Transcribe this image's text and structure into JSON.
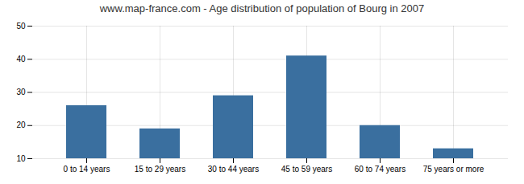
{
  "chart_data": {
    "type": "bar",
    "title": "www.map-france.com - Age distribution of population of Bourg in 2007",
    "categories": [
      "0 to 14 years",
      "15 to 29 years",
      "30 to 44 years",
      "45 to 59 years",
      "60 to 74 years",
      "75 years or more"
    ],
    "values": [
      26,
      19,
      29,
      41,
      20,
      13
    ],
    "color": "#3a6f9f",
    "ylim": [
      10,
      50
    ],
    "yticks": [
      10,
      20,
      30,
      40,
      50
    ],
    "grid": true
  }
}
